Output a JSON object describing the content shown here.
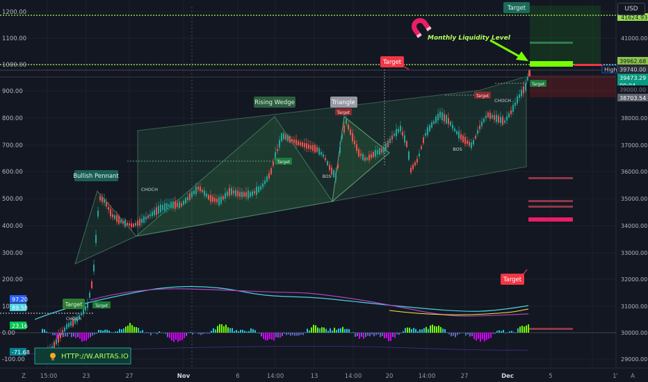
{
  "currency_button": "USD",
  "logo": {
    "icon_name": "magnet-logo-icon",
    "color": "#e91e63"
  },
  "watermark_text": "HTTP://W.ARITAS.IO",
  "x_axis": {
    "labels": [
      "Z",
      "15:00",
      "23",
      "27",
      "Nov",
      "6",
      "14:00",
      "13",
      "14:00",
      "20",
      "14:00",
      "27",
      "Dec",
      "5",
      "1'",
      "A"
    ]
  },
  "left_axis": {
    "labels": [
      "1200.00",
      "1100.00",
      "1000.00",
      "900.00",
      "800.00",
      "700.00",
      "600.00",
      "500.00",
      "400.00",
      "300.00",
      "200.00",
      "100.00",
      "0.00",
      "-100.00"
    ]
  },
  "left_badges": [
    {
      "text": "97.20",
      "color": "#2962ff"
    },
    {
      "text": "89.58",
      "color": "#4dd0e1"
    },
    {
      "text": "23.16",
      "color": "#00c853"
    },
    {
      "text": "-71.68",
      "color": "#00838f"
    }
  ],
  "right_axis": {
    "labels": [
      "41000.00",
      "38000.00",
      "37000.00",
      "36000.00",
      "35000.00",
      "34000.00",
      "33000.00",
      "32000.00",
      "31000.00",
      "30000.00",
      "29000.00"
    ],
    "top_clipped": "41624.93"
  },
  "price_badges": [
    {
      "text": "39962.68",
      "color": "#8bc34a",
      "text_color": "#131722"
    },
    {
      "text": "High",
      "color": "#131722",
      "text_color": "#d1d4dc"
    },
    {
      "text": "39740.00",
      "color": "#2a2e39",
      "text_color": "#d1d4dc"
    },
    {
      "text": "39473.29",
      "color": "#089981",
      "text_color": "#ffffff"
    },
    {
      "text": "09:04",
      "color": "#089981",
      "text_color": "#ffffff"
    },
    {
      "text": "39000.00",
      "color": "#131722",
      "text_color": "#787b86"
    },
    {
      "text": "38703.54",
      "color": "#5d606b",
      "text_color": "#ffffff"
    }
  ],
  "annotations": {
    "monthly_liquidity": "Monthly Liquidity Level",
    "rising_wedge": "Rising Wedge",
    "triangle": "Triangle",
    "bullish_pennant": "Bullish Pennant",
    "choch_1": "CHOCH",
    "choch_2": "CHOCH",
    "choch_3": "CHOCH",
    "bos_1": "BOS",
    "bos_2": "BOS",
    "target_top": "Target",
    "target_mid": "Target",
    "target_right": "Target",
    "target_small_1": "Target",
    "target_small_2": "Target",
    "target_small_3": "Target",
    "target_small_4": "Target",
    "target_small_5": "Target",
    "target_bottom_left": "Target"
  },
  "colors": {
    "up": "#26a69a",
    "down": "#ef5350",
    "liquidity": "#b2ff59",
    "wedge": "#4caf50",
    "target_red": "#f23645",
    "target_green": "#1e7a3c",
    "teal_box": "#1b6b5a"
  },
  "chart_data": {
    "type": "candlestick",
    "price_range": [
      28600,
      41800
    ],
    "oscillator_range": [
      -130,
      1230
    ],
    "liquidity_level": 41624.93,
    "current_price": 39473.29,
    "high": 39740.0
  }
}
